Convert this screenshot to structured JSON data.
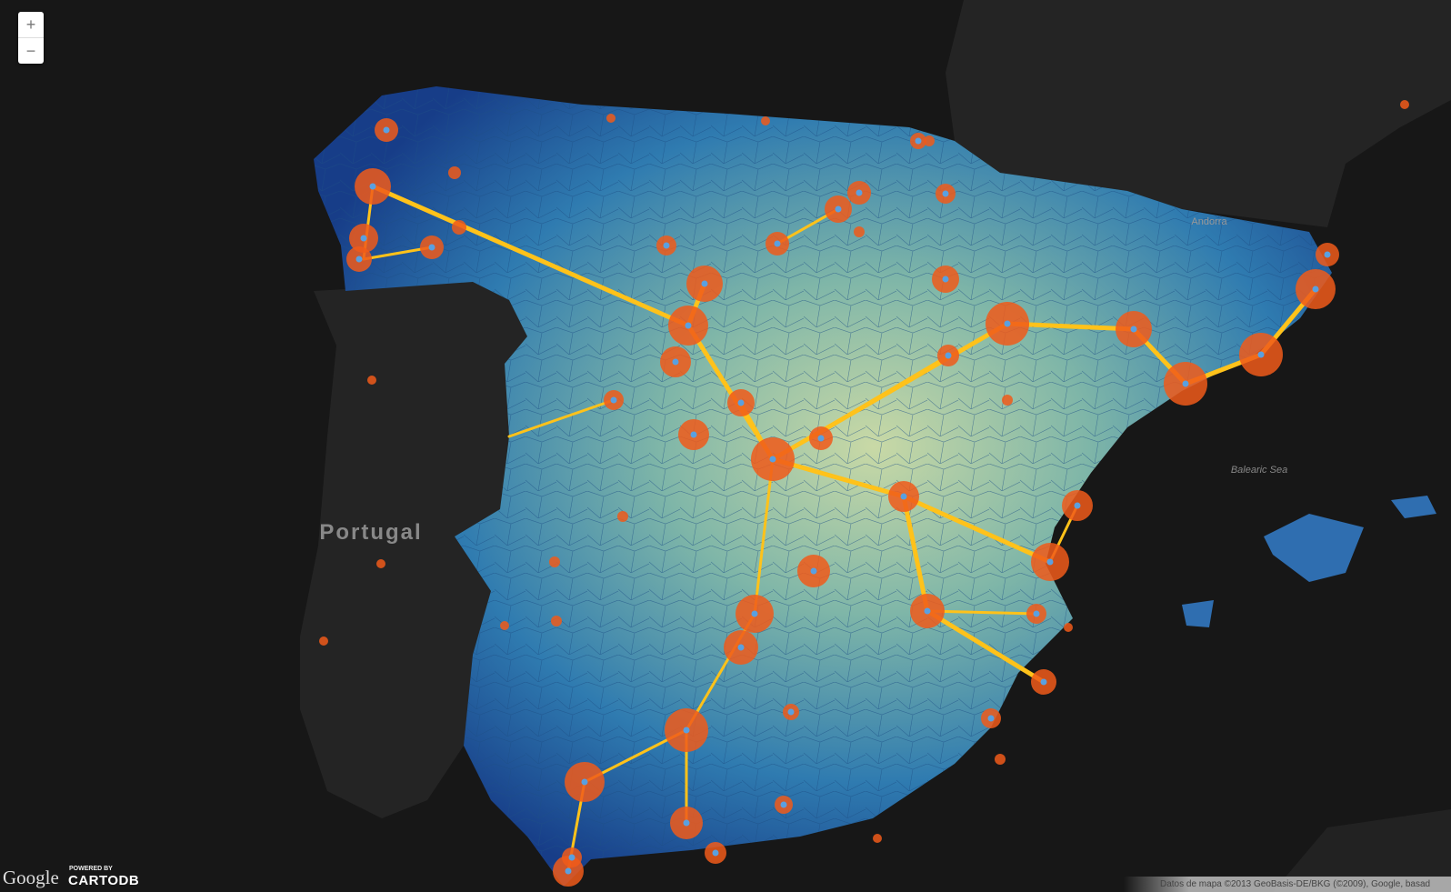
{
  "zoom_controls": {
    "zoom_in": "+",
    "zoom_out": "−"
  },
  "labels": {
    "portugal": "Portugal",
    "andorra": "Andorra",
    "sea": "Balearic Sea"
  },
  "footer": {
    "google": "Google",
    "powered_by": "POWERED BY",
    "cartodb": "CARTODB",
    "attribution": "Datos de mapa ©2013 GeoBasis-DE/BKG (©2009), Google, basad"
  }
}
